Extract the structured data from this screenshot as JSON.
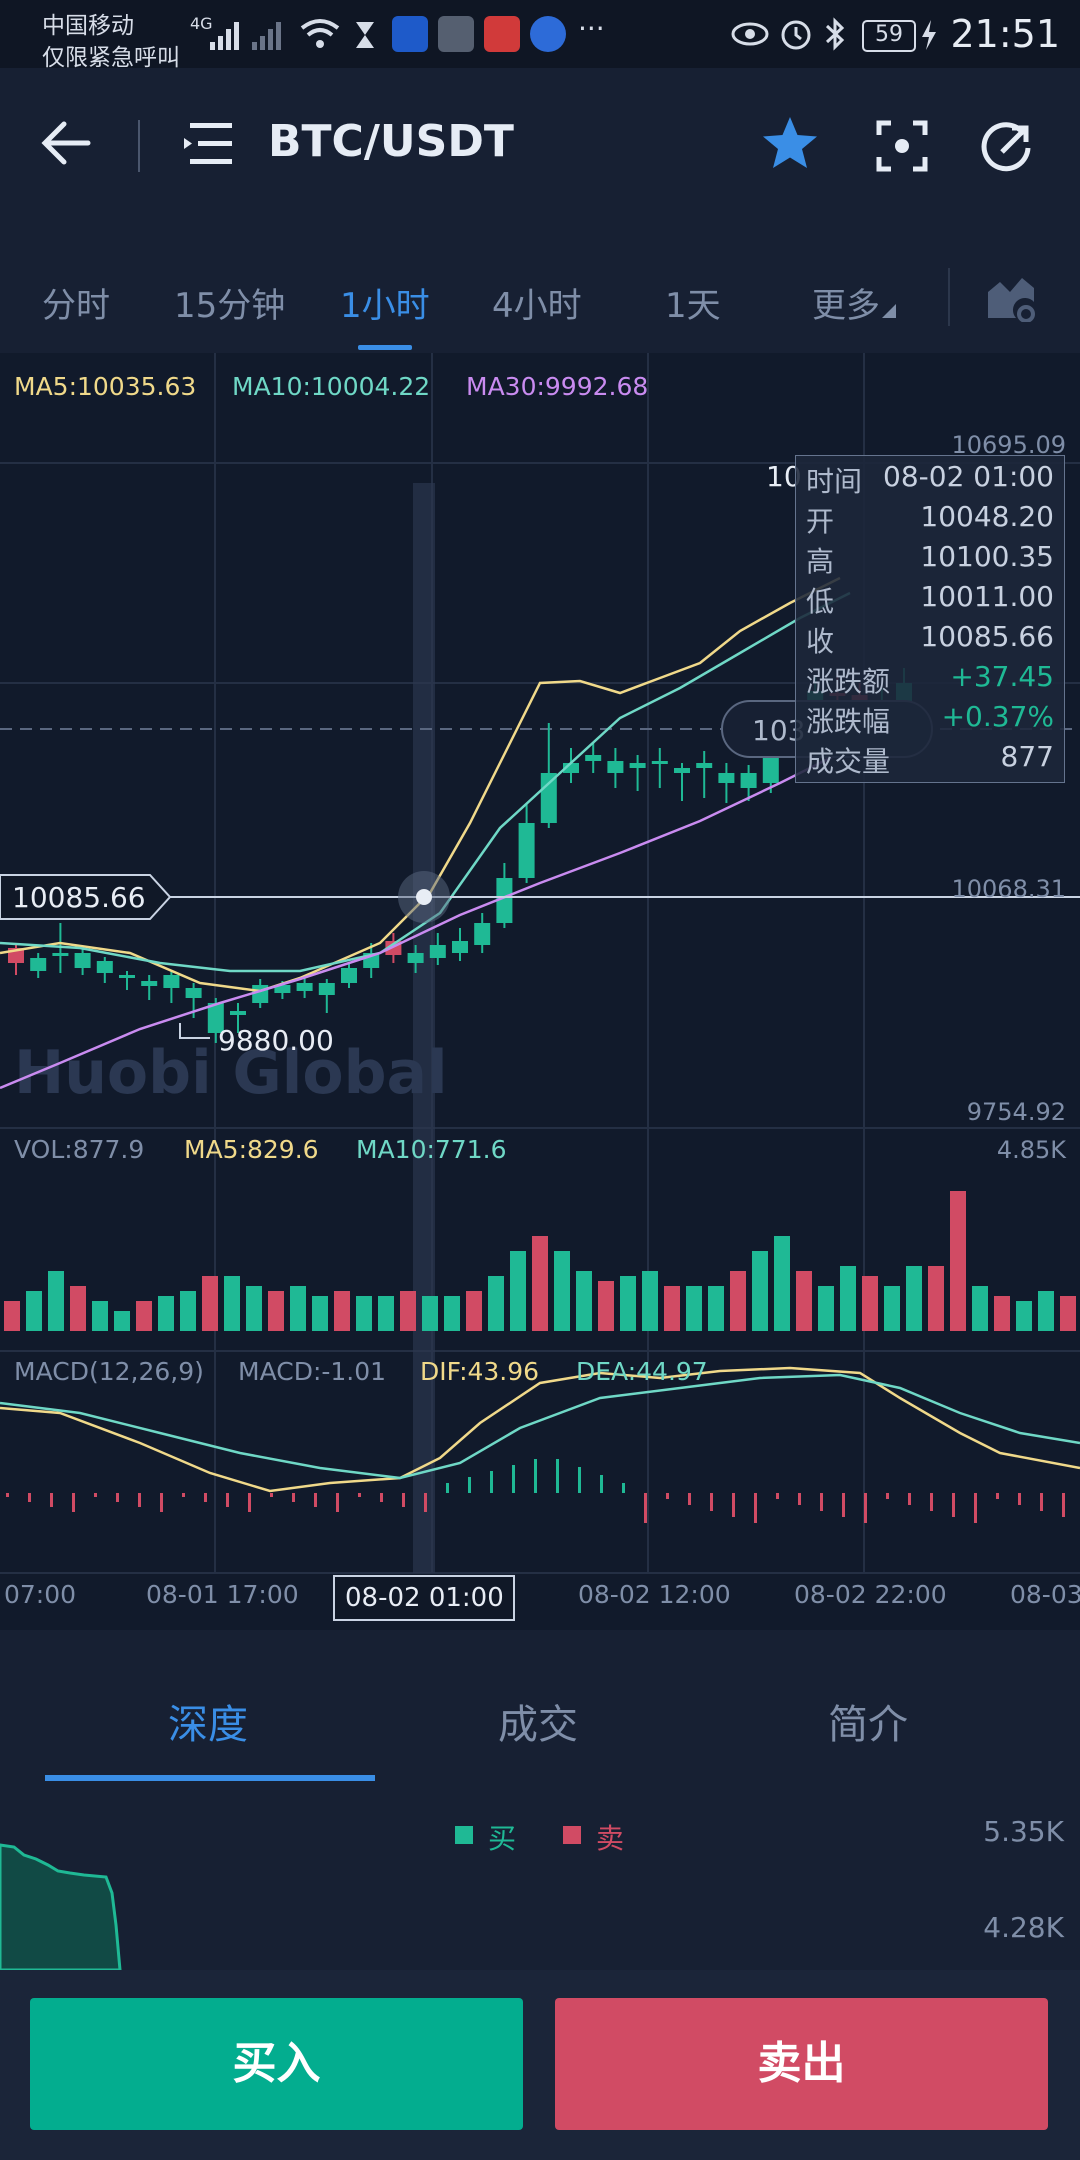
{
  "status_bar": {
    "carrier": "中国移动",
    "carrier_note": "仅限紧急呼叫",
    "network": "4G",
    "app_badges": [
      "汽车之家",
      "GDT",
      "头条",
      "36Kr"
    ],
    "more": "···",
    "battery": "59",
    "time": "21:51"
  },
  "header": {
    "title": "BTC/USDT",
    "icons": [
      "back-arrow-icon",
      "menu-list-icon",
      "star-icon",
      "screenshot-icon",
      "refresh-icon"
    ],
    "accent": "#3a8ee6"
  },
  "period_tabs": [
    {
      "label": "分时",
      "active": false
    },
    {
      "label": "15分钟",
      "active": false
    },
    {
      "label": "1小时",
      "active": true
    },
    {
      "label": "4小时",
      "active": false
    },
    {
      "label": "1天",
      "active": false
    },
    {
      "label": "更多",
      "active": false
    }
  ],
  "kline": {
    "ma5": "MA5:10035.63",
    "ma10": "MA10:10004.22",
    "ma30": "MA30:9992.68",
    "y_top": "10695.09",
    "y_mid": "10068.31",
    "y_bottom": "9754.92",
    "crosshair_price": "10085.66",
    "low_marker": "9880.00",
    "partial_label_top": "10",
    "partial_label_bubble": "103",
    "watermark": "Huobi Global",
    "colors": {
      "up": "#1fb995",
      "down": "#d14b64",
      "ma5": "#f0d98a",
      "ma10": "#6fd8c6",
      "ma30": "#c98bf0"
    }
  },
  "tooltip": {
    "rows": [
      {
        "k": "时间",
        "v": "08-02 01:00"
      },
      {
        "k": "开",
        "v": "10048.20"
      },
      {
        "k": "高",
        "v": "10100.35"
      },
      {
        "k": "低",
        "v": "10011.00"
      },
      {
        "k": "收",
        "v": "10085.66"
      },
      {
        "k": "涨跌额",
        "v": "+37.45"
      },
      {
        "k": "涨跌幅",
        "v": "+0.37%"
      },
      {
        "k": "成交量",
        "v": "877"
      }
    ]
  },
  "volume": {
    "vol": "VOL:877.9",
    "ma5": "MA5:829.6",
    "ma10": "MA10:771.6",
    "max": "4.85K"
  },
  "macd": {
    "title": "MACD(12,26,9)",
    "macd": "MACD:-1.01",
    "dif": "DIF:43.96",
    "dea": "DEA:44.97"
  },
  "time_axis": [
    "07:00",
    "08-01 17:00",
    "08-02 01:00",
    "08-02 12:00",
    "08-02 22:00",
    "08-03"
  ],
  "info_tabs": [
    {
      "label": "深度",
      "active": true
    },
    {
      "label": "成交",
      "active": false
    },
    {
      "label": "简介",
      "active": false
    }
  ],
  "depth": {
    "buy_label": "买",
    "sell_label": "卖",
    "y_top": "5.35K",
    "y_mid": "4.28K"
  },
  "buttons": {
    "buy": "买入",
    "sell": "卖出"
  }
}
